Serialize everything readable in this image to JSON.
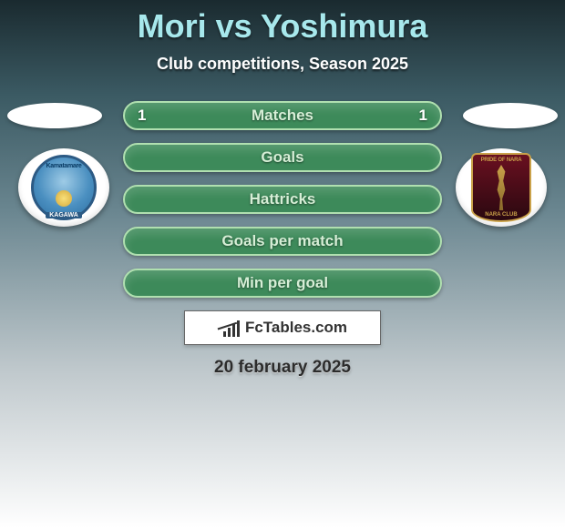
{
  "title": {
    "text": "Mori vs Yoshimura",
    "color": "#a7e8ec",
    "fontsize": 36
  },
  "subtitle": {
    "text": "Club competitions, Season 2025",
    "color": "#ffffff",
    "fontsize": 18
  },
  "rows": [
    {
      "label": "Matches",
      "left_value": "1",
      "right_value": "1"
    },
    {
      "label": "Goals",
      "left_value": "",
      "right_value": ""
    },
    {
      "label": "Hattricks",
      "left_value": "",
      "right_value": ""
    },
    {
      "label": "Goals per match",
      "left_value": "",
      "right_value": ""
    },
    {
      "label": "Min per goal",
      "left_value": "",
      "right_value": ""
    }
  ],
  "row_style": {
    "pill_width": 350,
    "pill_height": 32,
    "pill_bg": "#3d8a5a",
    "pill_border": "#b0e0b0",
    "label_color": "#d6eed6",
    "value_color": "#ffffff",
    "label_fontsize": 17
  },
  "side_ellipse": {
    "bg": "#ffffff",
    "width": 104,
    "height": 28
  },
  "left_club": {
    "name": "Kamatamare Kagawa",
    "ribbon_text": "Kamatamare",
    "base_text": "KAGAWA",
    "primary_color": "#4a8fc0",
    "secondary_color": "#2c5a84"
  },
  "right_club": {
    "name": "Nara Club",
    "top_text": "PRIDE OF NARA",
    "bottom_text": "NARA CLUB",
    "primary_color": "#6a1020",
    "accent_color": "#caa24a"
  },
  "footer_logo": {
    "text": "FcTables.com",
    "text_color": "#333333",
    "bg": "#ffffff",
    "border": "#666666",
    "fontsize": 17,
    "bar_heights": [
      6,
      10,
      14,
      18
    ]
  },
  "date": {
    "text": "20 february 2025",
    "color": "#2c2c2c",
    "fontsize": 19
  },
  "background": {
    "gradient_stops": [
      "#1a2a2f",
      "#3b5a63",
      "#6a8690",
      "#bfc8cc",
      "#ffffff"
    ]
  }
}
